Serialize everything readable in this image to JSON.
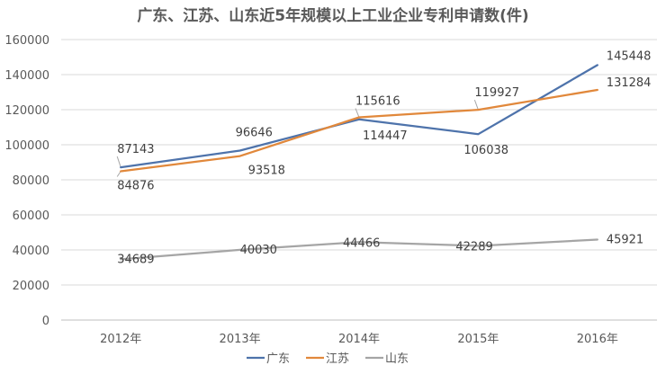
{
  "chart_data": {
    "type": "line",
    "title": "广东、江苏、山东近5年规模以上工业企业专利申请数(件)",
    "categories": [
      "2012年",
      "2013年",
      "2014年",
      "2015年",
      "2016年"
    ],
    "ylim": [
      0,
      160000
    ],
    "yticks": [
      "0",
      "20000",
      "40000",
      "60000",
      "80000",
      "100000",
      "120000",
      "140000",
      "160000"
    ],
    "grid": true,
    "legend_position": "bottom",
    "series": [
      {
        "name": "广东",
        "color": "#4e73ab",
        "values": [
          87143,
          96646,
          114447,
          106038,
          145448
        ],
        "labels": [
          "87143",
          "96646",
          "114447",
          "106038",
          "145448"
        ]
      },
      {
        "name": "江苏",
        "color": "#e1883b",
        "values": [
          84876,
          93518,
          115616,
          119927,
          131284
        ],
        "labels": [
          "84876",
          "93518",
          "115616",
          "119927",
          "131284"
        ]
      },
      {
        "name": "山东",
        "color": "#a5a5a5",
        "values": [
          34689,
          40030,
          44466,
          42289,
          45921
        ],
        "labels": [
          "34689",
          "40030",
          "44466",
          "42289",
          "45921"
        ]
      }
    ]
  }
}
